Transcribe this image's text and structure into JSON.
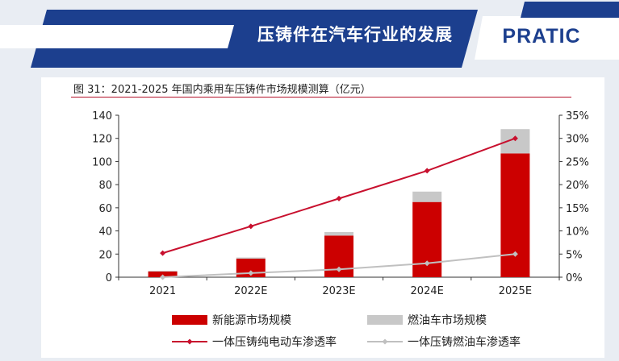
{
  "slide": {
    "title": "压铸件在汽车行业的发展",
    "logo": "PRATIC"
  },
  "colors": {
    "navy": "#1c3f8e",
    "accent_red": "#cc0000",
    "gray_bar": "#c8c8c8",
    "gray_line": "#c0c0c0"
  },
  "figure": {
    "title": "图 31：2021-2025 年国内乘用车压铸件市场规模测算（亿元）"
  },
  "chart_data": {
    "type": "bar",
    "categories": [
      "2021",
      "2022E",
      "2023E",
      "2024E",
      "2025E"
    ],
    "series": [
      {
        "name": "新能源市场规模",
        "kind": "bar",
        "axis": "left",
        "stack": "total",
        "color": "#cc0000",
        "values": [
          5,
          16,
          36,
          65,
          107
        ]
      },
      {
        "name": "燃油车市场规模",
        "kind": "bar",
        "axis": "left",
        "stack": "total",
        "color": "#c8c8c8",
        "values": [
          0.5,
          1,
          3,
          9,
          21
        ]
      },
      {
        "name": "一体压铸纯电动车渗透率",
        "kind": "line",
        "axis": "right",
        "color": "#c8102e",
        "values": [
          5.2,
          11,
          17,
          23,
          30
        ]
      },
      {
        "name": "一体压铸燃油车渗透率",
        "kind": "line",
        "axis": "right",
        "color": "#c0c0c0",
        "values": [
          0,
          0.9,
          1.7,
          3.0,
          5.0
        ]
      }
    ],
    "y_left": {
      "min": 0,
      "max": 140,
      "ticks": [
        "0",
        "20",
        "40",
        "60",
        "80",
        "100",
        "120",
        "140"
      ]
    },
    "y_right": {
      "min": 0,
      "max": 35,
      "ticks": [
        "0%",
        "5%",
        "10%",
        "15%",
        "20%",
        "25%",
        "30%",
        "35%"
      ]
    },
    "grid": false,
    "legend_position": "bottom"
  }
}
